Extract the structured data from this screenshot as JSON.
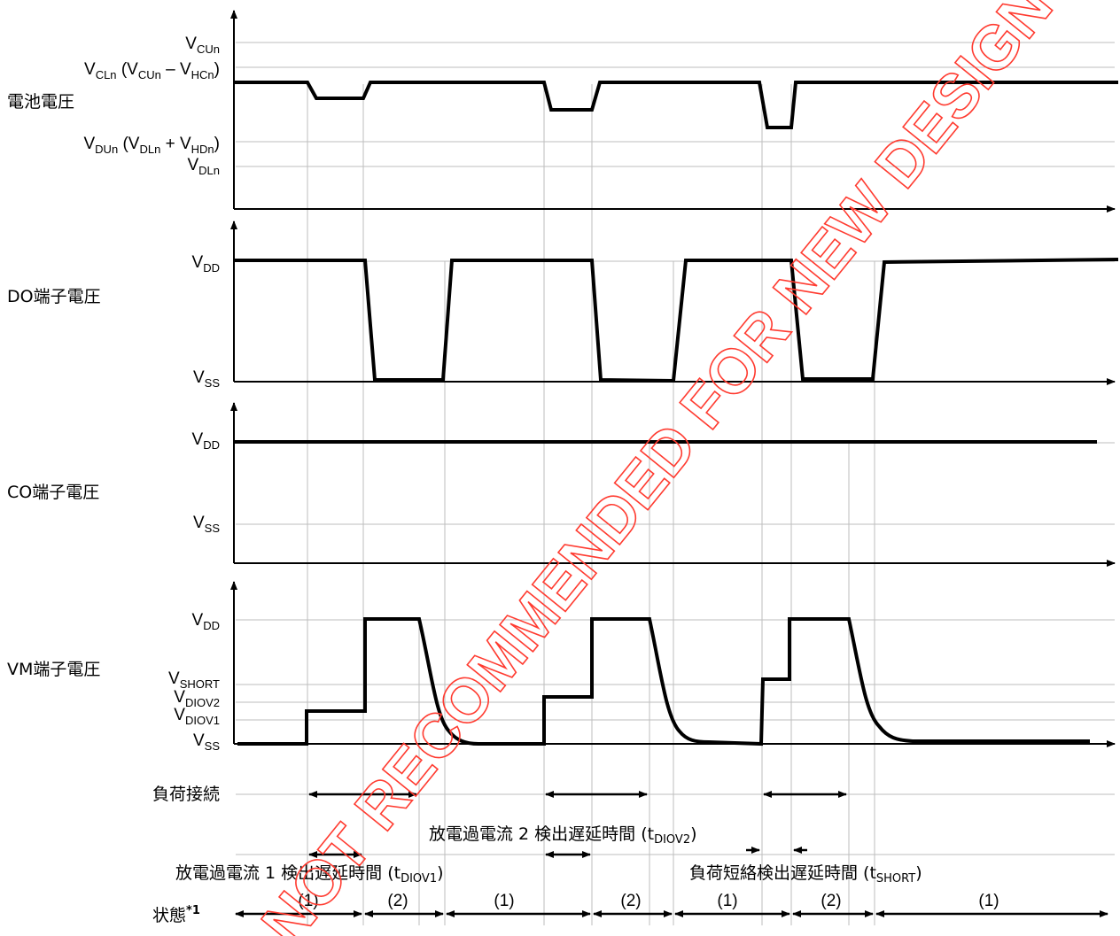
{
  "panels": {
    "battery": {
      "label": "電池電圧",
      "levels": [
        {
          "main": "V",
          "sub": "CUn",
          "rest": ""
        },
        {
          "main": "V",
          "sub": "CLn",
          "rest": " (V",
          "sub2": "CUn",
          "rest2": " – V",
          "sub3": "HCn",
          "rest3": ")"
        },
        {
          "main": "V",
          "sub": "DUn",
          "rest": " (V",
          "sub2": "DLn",
          "rest2": " + V",
          "sub3": "HDn",
          "rest3": ")"
        },
        {
          "main": "V",
          "sub": "DLn",
          "rest": ""
        }
      ]
    },
    "do": {
      "label": "DO端子電圧",
      "high": {
        "main": "V",
        "sub": "DD"
      },
      "low": {
        "main": "V",
        "sub": "SS"
      }
    },
    "co": {
      "label": "CO端子電圧",
      "high": {
        "main": "V",
        "sub": "DD"
      },
      "low": {
        "main": "V",
        "sub": "SS"
      }
    },
    "vm": {
      "label": "VM端子電圧",
      "levels": [
        {
          "main": "V",
          "sub": "DD"
        },
        {
          "main": "V",
          "sub": "SHORT"
        },
        {
          "main": "V",
          "sub": "DIOV2"
        },
        {
          "main": "V",
          "sub": "DIOV1"
        },
        {
          "main": "V",
          "sub": "SS"
        }
      ]
    }
  },
  "timing": {
    "load_connect": "負荷接続",
    "diov2": {
      "text": "放電過電流 2 検出遅延時間 (t",
      "sub": "DIOV2",
      "end": ")"
    },
    "diov1": {
      "text": "放電過電流 1 検出遅延時間 (t",
      "sub": "DIOV1",
      "end": ")"
    },
    "short": {
      "text": "負荷短絡検出遅延時間 (t",
      "sub": "SHORT",
      "end": ")"
    },
    "state_label": "状態",
    "state_note": "*1",
    "states": [
      "(1)",
      "(2)",
      "(1)",
      "(2)",
      "(1)",
      "(2)",
      "(1)"
    ]
  },
  "watermark": "NOT RECOMMENDED FOR NEW DESIGN"
}
